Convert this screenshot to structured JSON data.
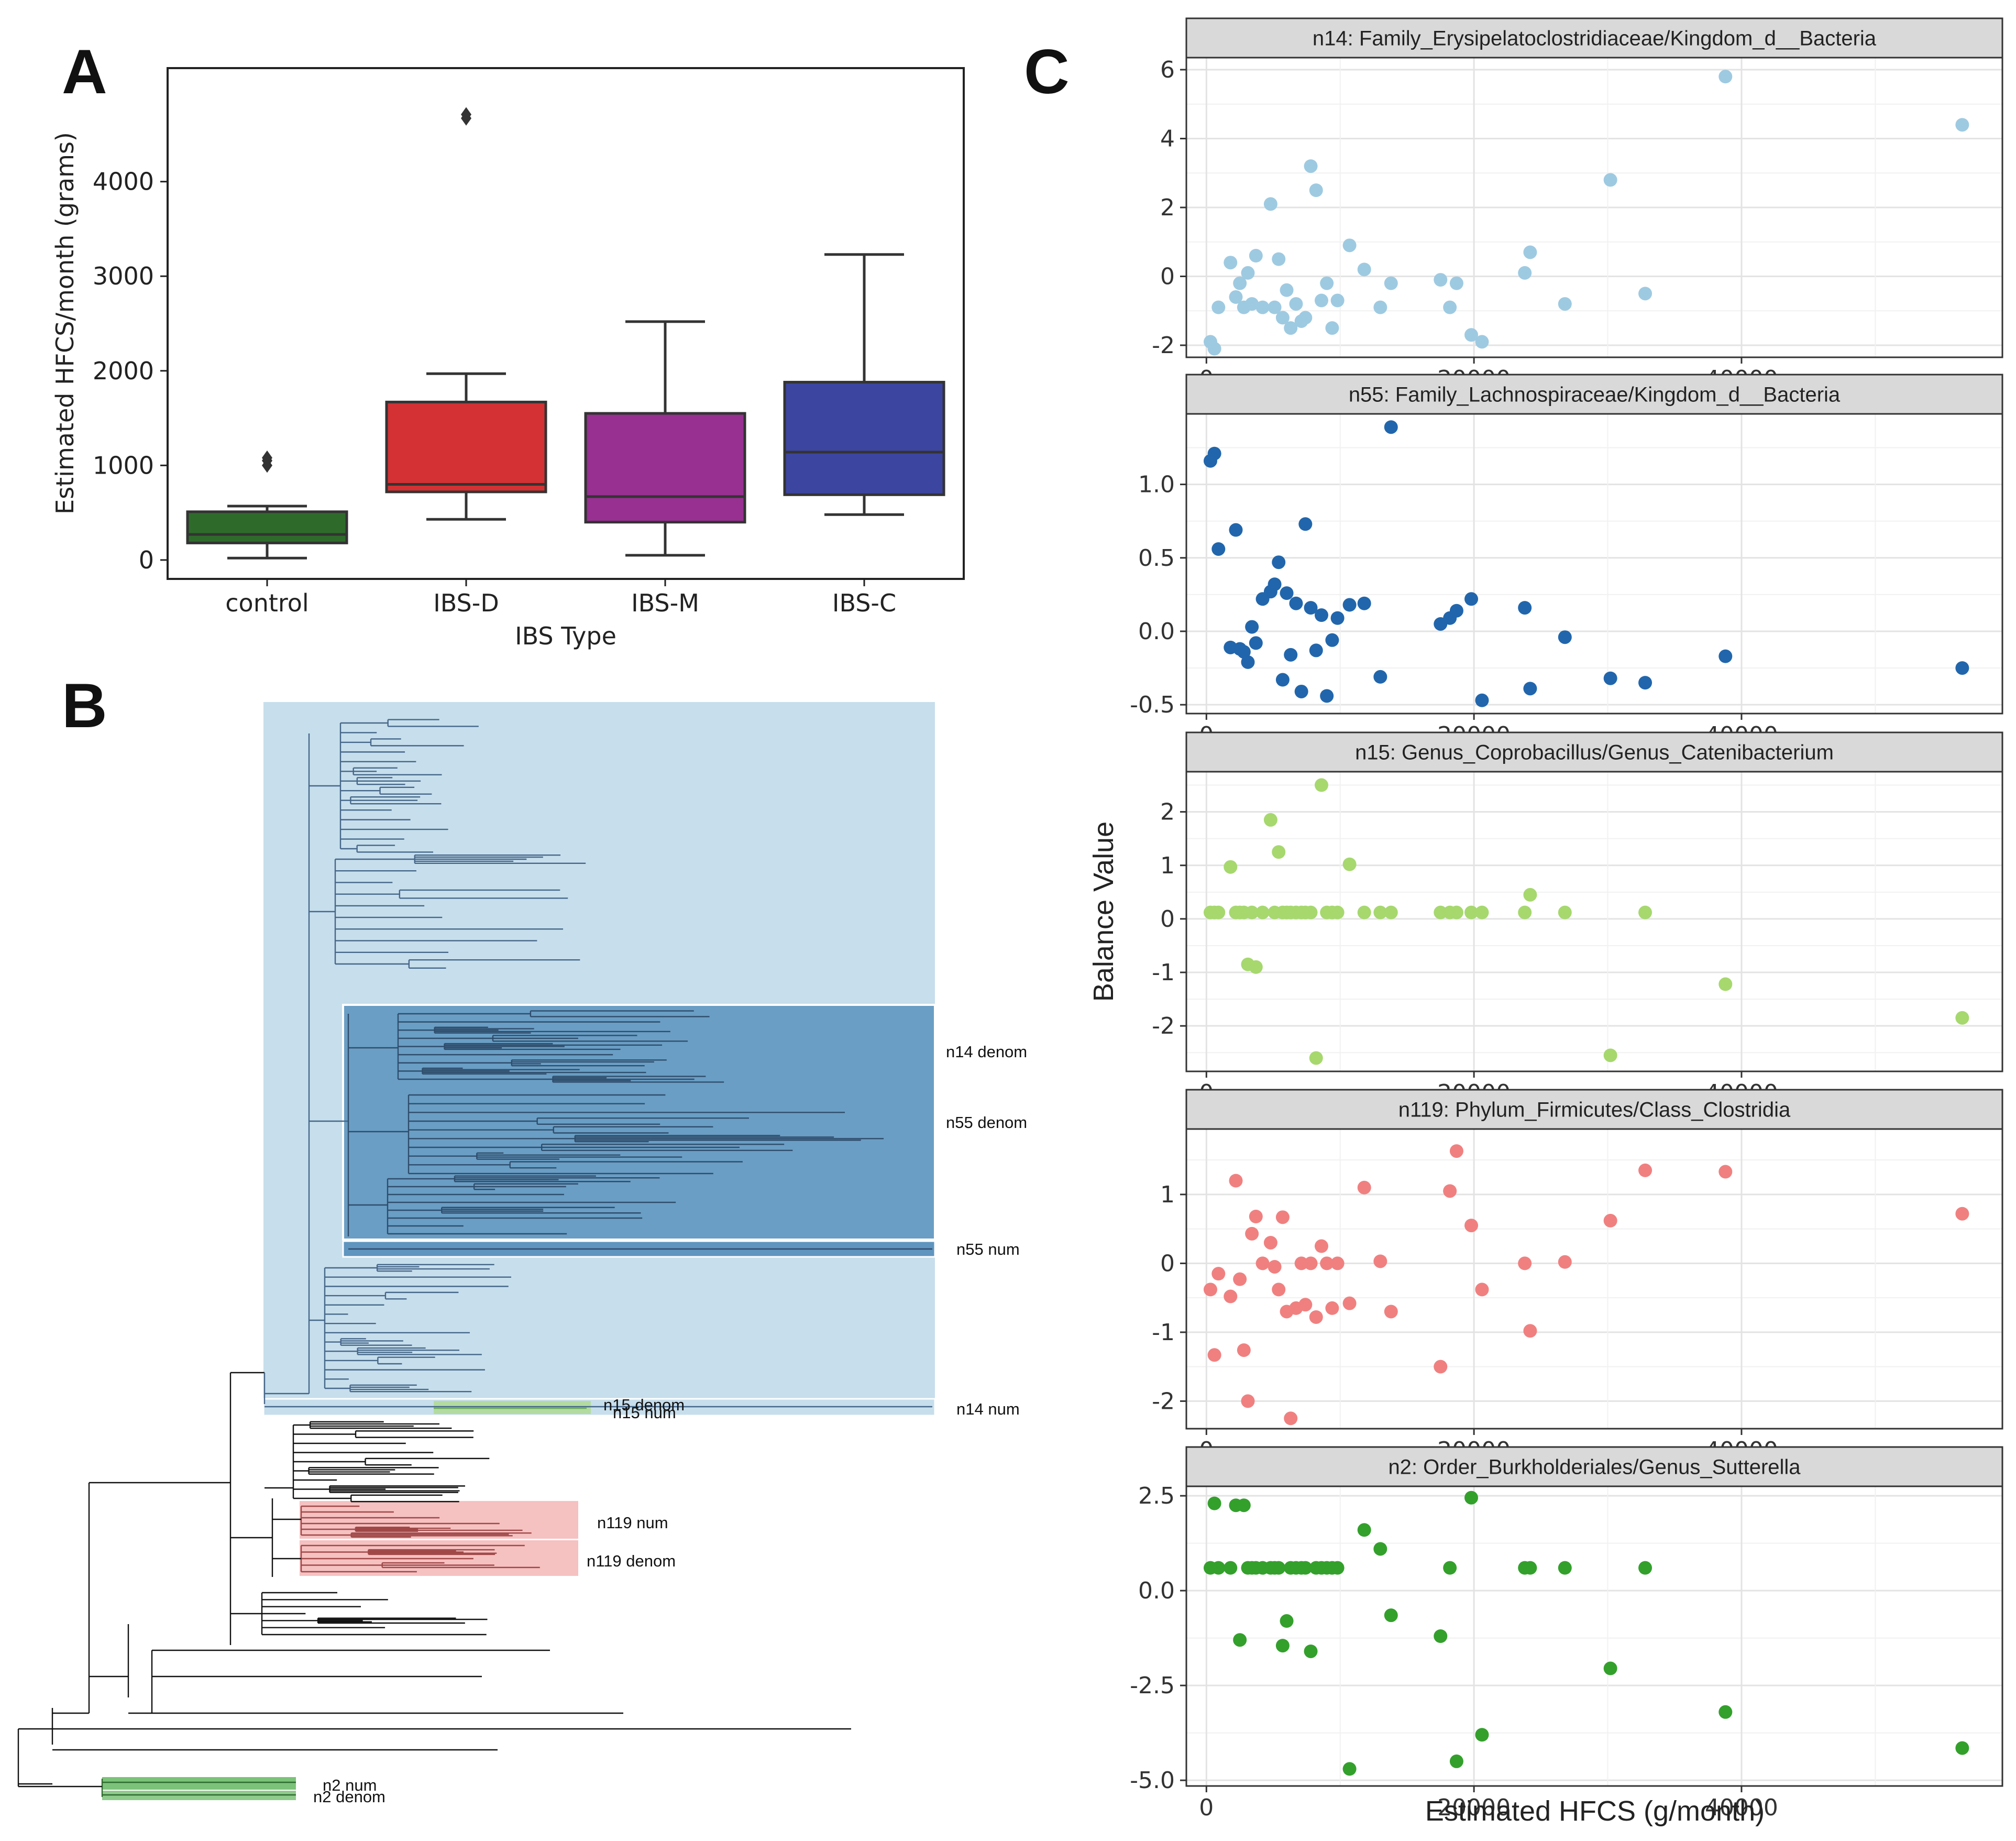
{
  "figure": {
    "panel_labels": [
      "A",
      "B",
      "C"
    ]
  },
  "chart_data": [
    {
      "id": "A",
      "type": "box",
      "title": "",
      "xlabel": "IBS Type",
      "ylabel": "Estimated HFCS/month (grams)",
      "ylim": [
        -200,
        5200
      ],
      "yticks": [
        0,
        1000,
        2000,
        3000,
        4000
      ],
      "categories": [
        "control",
        "IBS-D",
        "IBS-M",
        "IBS-C"
      ],
      "colors": [
        "#2e6b2b",
        "#d33133",
        "#973090",
        "#3c45a0"
      ],
      "boxes": [
        {
          "category": "control",
          "whisker_low": 20,
          "q1": 180,
          "median": 270,
          "q3": 510,
          "whisker_high": 570,
          "outliers": [
            1000,
            1050,
            1080
          ]
        },
        {
          "category": "IBS-D",
          "whisker_low": 430,
          "q1": 720,
          "median": 800,
          "q3": 1670,
          "whisker_high": 1970,
          "outliers": [
            4670,
            4710
          ]
        },
        {
          "category": "IBS-M",
          "whisker_low": 50,
          "q1": 400,
          "median": 670,
          "q3": 1550,
          "whisker_high": 2520,
          "outliers": []
        },
        {
          "category": "IBS-C",
          "whisker_low": 480,
          "q1": 690,
          "median": 1140,
          "q3": 1880,
          "whisker_high": 3230,
          "outliers": []
        }
      ]
    },
    {
      "id": "B",
      "type": "tree",
      "labels": [
        "n14 denom",
        "n55 denom",
        "n55 num",
        "n14 num",
        "n15 denom",
        "n15 num",
        "n119 num",
        "n119 denom",
        "n2 num",
        "n2 denom"
      ],
      "highlight_colors": {
        "n14": "#c7deec",
        "n55": "#6a9ec4",
        "n15": "#b3dba0",
        "n119": "#f6c1c1",
        "n2": "#7cc27a"
      }
    },
    {
      "id": "C",
      "type": "scatter",
      "xlabel": "Estimated HFCS (g/month)",
      "ylabel": "Balance Value",
      "xlim": [
        -1500,
        59500
      ],
      "xticks": [
        0,
        20000,
        40000
      ],
      "x": [
        300,
        600,
        900,
        1800,
        2200,
        2500,
        2800,
        3100,
        3400,
        3700,
        4200,
        4800,
        5100,
        5400,
        5700,
        6000,
        6300,
        6700,
        7100,
        7400,
        7800,
        8200,
        8600,
        9000,
        9400,
        9800,
        10700,
        11800,
        13000,
        13800,
        17500,
        18200,
        18700,
        19800,
        20600,
        23800,
        24200,
        26800,
        30200,
        32800,
        38800,
        56500
      ],
      "panels": [
        {
          "title": "n14: Family_Erysipelatoclostridiaceae/Kingdom_d__Bacteria",
          "color": "#9ecae1",
          "ylim": [
            -2.35,
            6.35
          ],
          "yticks": [
            -2,
            0,
            2,
            4,
            6
          ],
          "y": [
            -1.9,
            -2.1,
            -0.9,
            0.4,
            -0.6,
            -0.2,
            -0.9,
            0.1,
            -0.8,
            0.6,
            -0.9,
            2.1,
            -0.9,
            0.5,
            -1.2,
            -0.4,
            -1.5,
            -0.8,
            -1.3,
            -1.2,
            3.2,
            2.5,
            -0.7,
            -0.2,
            -1.5,
            -0.7,
            0.9,
            0.2,
            -0.9,
            -0.2,
            -0.1,
            -0.9,
            -0.2,
            -1.7,
            -1.9,
            0.1,
            0.7,
            -0.8,
            2.8,
            -0.5,
            5.8,
            4.4
          ]
        },
        {
          "title": "n55: Family_Lachnospiraceae/Kingdom_d__Bacteria",
          "color": "#2166ac",
          "ylim": [
            -0.56,
            1.48
          ],
          "yticks": [
            -0.5,
            0.0,
            0.5,
            1.0
          ],
          "yticklabels": [
            "-0.5",
            "0.0",
            "0.5",
            "1.0"
          ],
          "y": [
            1.16,
            1.21,
            0.56,
            -0.11,
            0.69,
            -0.12,
            -0.14,
            -0.21,
            0.03,
            -0.08,
            0.22,
            0.27,
            0.32,
            0.47,
            -0.33,
            0.26,
            -0.16,
            0.19,
            -0.41,
            0.73,
            0.16,
            -0.13,
            0.11,
            -0.44,
            -0.06,
            0.09,
            0.18,
            0.19,
            -0.31,
            1.39,
            0.05,
            0.09,
            0.14,
            0.22,
            -0.47,
            0.16,
            -0.39,
            -0.04,
            -0.32,
            -0.35,
            -0.17,
            -0.25
          ]
        },
        {
          "title": "n15: Genus_Coprobacillus/Genus_Catenibacterium",
          "color": "#a6d86e",
          "ylim": [
            -2.85,
            2.75
          ],
          "yticks": [
            -2,
            -1,
            0,
            1,
            2
          ],
          "y": [
            0.12,
            0.12,
            0.12,
            0.97,
            0.12,
            0.12,
            0.12,
            -0.85,
            0.12,
            -0.9,
            0.12,
            1.85,
            0.12,
            1.25,
            0.12,
            0.12,
            0.12,
            0.12,
            0.12,
            0.12,
            0.12,
            -2.6,
            2.5,
            0.12,
            0.12,
            0.12,
            1.02,
            0.12,
            0.12,
            0.12,
            0.12,
            0.12,
            0.12,
            0.12,
            0.12,
            0.12,
            0.45,
            0.12,
            -2.55,
            0.12,
            -1.22,
            -1.85
          ]
        },
        {
          "title": "n119: Phylum_Firmicutes/Class_Clostridia",
          "color": "#f08080",
          "ylim": [
            -2.4,
            1.95
          ],
          "yticks": [
            -2,
            -1,
            0,
            1
          ],
          "y": [
            -0.38,
            -1.33,
            -0.15,
            -0.48,
            1.2,
            -0.23,
            -1.26,
            -2.0,
            0.43,
            0.68,
            0.0,
            0.3,
            -0.05,
            -0.38,
            0.67,
            -0.7,
            -2.25,
            -0.65,
            0.0,
            -0.6,
            0.0,
            -0.78,
            0.25,
            0.0,
            -0.65,
            0.0,
            -0.58,
            1.1,
            0.03,
            -0.7,
            -1.5,
            1.05,
            1.63,
            0.55,
            -0.38,
            0.0,
            -0.98,
            0.02,
            0.62,
            1.35,
            1.33,
            0.72
          ]
        },
        {
          "title": "n2: Order_Burkholderiales/Genus_Sutterella",
          "color": "#33a02c",
          "ylim": [
            -5.15,
            2.75
          ],
          "yticks": [
            -5.0,
            -2.5,
            0.0,
            2.5
          ],
          "yticklabels": [
            "-5.0",
            "-2.5",
            "0.0",
            "2.5"
          ],
          "y": [
            0.6,
            2.3,
            0.6,
            0.6,
            2.25,
            -1.3,
            2.25,
            0.6,
            0.6,
            0.6,
            0.6,
            0.6,
            0.6,
            0.6,
            -1.45,
            -0.8,
            0.6,
            0.6,
            0.6,
            0.6,
            -1.6,
            0.6,
            0.6,
            0.6,
            0.6,
            0.6,
            -4.7,
            1.6,
            1.1,
            -0.65,
            -1.2,
            0.6,
            -4.5,
            2.45,
            -3.8,
            0.6,
            0.6,
            0.6,
            -2.05,
            0.6,
            -3.2,
            -4.15
          ]
        }
      ]
    }
  ]
}
